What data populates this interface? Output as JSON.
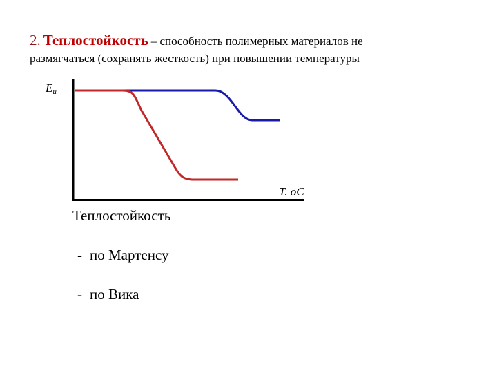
{
  "heading": {
    "number": "2.",
    "term": "Теплостойкость",
    "definition_line_1": "– способность полимерных материалов не",
    "definition_line_2": "размягчаться (сохранять жесткость) при повышении температуры"
  },
  "diagram": {
    "y_axis_label": "E",
    "y_axis_subscript": "и",
    "x_axis_label": "T. oC"
  },
  "list": {
    "title": "Теплостойкость",
    "items": [
      {
        "bullet": "-",
        "text": "по Мартенсу"
      },
      {
        "bullet": "-",
        "text": "по Вика"
      }
    ]
  }
}
